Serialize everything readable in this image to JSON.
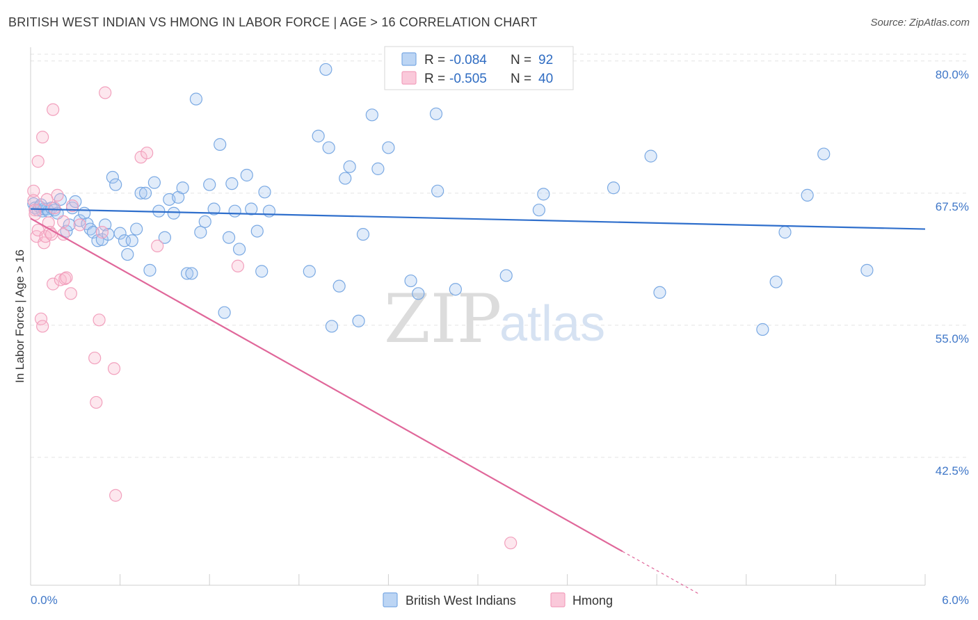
{
  "title": "BRITISH WEST INDIAN VS HMONG IN LABOR FORCE | AGE > 16 CORRELATION CHART",
  "source": "Source: ZipAtlas.com",
  "watermark": {
    "zip": "ZIP",
    "atlas": "atlas"
  },
  "legend": {
    "rows": [
      {
        "r_label": "R =",
        "r_value": "-0.084",
        "n_label": "N =",
        "n_value": "92",
        "color": "#a9c8ef"
      },
      {
        "r_label": "R =",
        "r_value": "-0.505",
        "n_label": "N =",
        "n_value": "40",
        "color": "#f7b6cc"
      }
    ]
  },
  "chart_data": {
    "type": "scatter",
    "title": "BRITISH WEST INDIAN VS HMONG IN LABOR FORCE | AGE > 16 CORRELATION CHART",
    "xlabel": "",
    "ylabel": "In Labor Force | Age > 16",
    "xlim": [
      0,
      6
    ],
    "ylim": [
      30.4,
      81.3
    ],
    "x_tick_labels": [
      "0.0%",
      "6.0%"
    ],
    "y_ticks": [
      42.5,
      55.0,
      67.5,
      80.0
    ],
    "y_tick_labels": [
      "42.5%",
      "55.0%",
      "67.5%",
      "80.0%"
    ],
    "grid": true,
    "legend_position": "top-center",
    "series": [
      {
        "name": "British West Indians",
        "color": "#7aa9e3",
        "trend": {
          "x": [
            0,
            6
          ],
          "y": [
            66.0,
            64.1
          ]
        },
        "points": [
          [
            0.02,
            66.5
          ],
          [
            0.03,
            66.1
          ],
          [
            0.05,
            65.9
          ],
          [
            0.06,
            66.2
          ],
          [
            0.08,
            65.8
          ],
          [
            0.09,
            66.0
          ],
          [
            0.11,
            66.0
          ],
          [
            0.12,
            65.8
          ],
          [
            0.14,
            66.1
          ],
          [
            0.16,
            65.9
          ],
          [
            0.18,
            65.6
          ],
          [
            0.2,
            66.9
          ],
          [
            0.24,
            63.9
          ],
          [
            0.26,
            64.5
          ],
          [
            0.28,
            66.1
          ],
          [
            0.3,
            66.7
          ],
          [
            0.33,
            64.9
          ],
          [
            0.36,
            65.6
          ],
          [
            0.38,
            64.6
          ],
          [
            0.4,
            64.1
          ],
          [
            0.42,
            63.8
          ],
          [
            0.45,
            63.0
          ],
          [
            0.48,
            63.1
          ],
          [
            0.5,
            64.5
          ],
          [
            0.52,
            63.6
          ],
          [
            0.55,
            69.0
          ],
          [
            0.57,
            68.3
          ],
          [
            0.6,
            63.7
          ],
          [
            0.63,
            63.0
          ],
          [
            0.65,
            61.7
          ],
          [
            0.68,
            63.0
          ],
          [
            0.71,
            64.1
          ],
          [
            0.74,
            67.5
          ],
          [
            0.77,
            67.5
          ],
          [
            0.8,
            60.2
          ],
          [
            0.83,
            68.5
          ],
          [
            0.86,
            65.8
          ],
          [
            0.9,
            63.3
          ],
          [
            0.93,
            66.9
          ],
          [
            0.96,
            65.6
          ],
          [
            0.99,
            67.1
          ],
          [
            1.02,
            68.0
          ],
          [
            1.05,
            59.9
          ],
          [
            1.08,
            59.9
          ],
          [
            1.11,
            76.4
          ],
          [
            1.14,
            63.8
          ],
          [
            1.17,
            64.8
          ],
          [
            1.2,
            68.3
          ],
          [
            1.23,
            66.0
          ],
          [
            1.27,
            72.1
          ],
          [
            1.3,
            56.2
          ],
          [
            1.33,
            63.3
          ],
          [
            1.35,
            68.4
          ],
          [
            1.37,
            65.8
          ],
          [
            1.4,
            62.2
          ],
          [
            1.45,
            69.2
          ],
          [
            1.48,
            66.0
          ],
          [
            1.52,
            63.9
          ],
          [
            1.55,
            60.1
          ],
          [
            1.57,
            67.6
          ],
          [
            1.6,
            65.8
          ],
          [
            1.87,
            60.1
          ],
          [
            1.93,
            72.9
          ],
          [
            1.98,
            79.2
          ],
          [
            2.0,
            71.8
          ],
          [
            2.02,
            54.9
          ],
          [
            2.07,
            58.7
          ],
          [
            2.11,
            68.9
          ],
          [
            2.14,
            70.0
          ],
          [
            2.2,
            55.4
          ],
          [
            2.23,
            63.6
          ],
          [
            2.29,
            74.9
          ],
          [
            2.33,
            69.8
          ],
          [
            2.4,
            71.8
          ],
          [
            2.55,
            59.2
          ],
          [
            2.6,
            58.0
          ],
          [
            2.72,
            75.0
          ],
          [
            2.73,
            67.7
          ],
          [
            2.85,
            58.4
          ],
          [
            3.19,
            59.7
          ],
          [
            3.41,
            65.9
          ],
          [
            3.44,
            67.4
          ],
          [
            3.91,
            68.0
          ],
          [
            4.16,
            71.0
          ],
          [
            4.22,
            58.1
          ],
          [
            4.91,
            54.6
          ],
          [
            5.0,
            59.1
          ],
          [
            5.06,
            63.8
          ],
          [
            5.21,
            67.3
          ],
          [
            5.32,
            71.2
          ],
          [
            5.61,
            60.2
          ],
          [
            0.07,
            66.4
          ]
        ]
      },
      {
        "name": "Hmong",
        "color": "#f2a0bd",
        "trend": {
          "x": [
            0,
            3.97
          ],
          "y": [
            65.1,
            33.6
          ]
        },
        "trend_dashed": {
          "x": [
            3.97,
            4.48
          ],
          "y": [
            33.6,
            29.6
          ]
        },
        "points": [
          [
            0.02,
            67.7
          ],
          [
            0.02,
            66.8
          ],
          [
            0.03,
            65.9
          ],
          [
            0.03,
            65.5
          ],
          [
            0.04,
            63.4
          ],
          [
            0.05,
            64.0
          ],
          [
            0.05,
            70.5
          ],
          [
            0.07,
            55.6
          ],
          [
            0.08,
            54.9
          ],
          [
            0.08,
            72.8
          ],
          [
            0.09,
            62.8
          ],
          [
            0.1,
            63.4
          ],
          [
            0.11,
            66.9
          ],
          [
            0.12,
            64.7
          ],
          [
            0.13,
            63.8
          ],
          [
            0.14,
            63.6
          ],
          [
            0.15,
            58.9
          ],
          [
            0.15,
            75.4
          ],
          [
            0.16,
            66.1
          ],
          [
            0.18,
            67.3
          ],
          [
            0.2,
            59.3
          ],
          [
            0.22,
            64.8
          ],
          [
            0.23,
            59.4
          ],
          [
            0.24,
            59.5
          ],
          [
            0.22,
            63.6
          ],
          [
            0.27,
            58.0
          ],
          [
            0.28,
            66.3
          ],
          [
            0.33,
            64.5
          ],
          [
            0.43,
            51.9
          ],
          [
            0.44,
            47.7
          ],
          [
            0.46,
            55.5
          ],
          [
            0.48,
            63.8
          ],
          [
            0.5,
            77.0
          ],
          [
            0.56,
            50.9
          ],
          [
            0.57,
            38.9
          ],
          [
            0.74,
            70.9
          ],
          [
            0.78,
            71.3
          ],
          [
            0.85,
            62.5
          ],
          [
            1.39,
            60.6
          ],
          [
            3.22,
            34.4
          ]
        ]
      }
    ]
  }
}
